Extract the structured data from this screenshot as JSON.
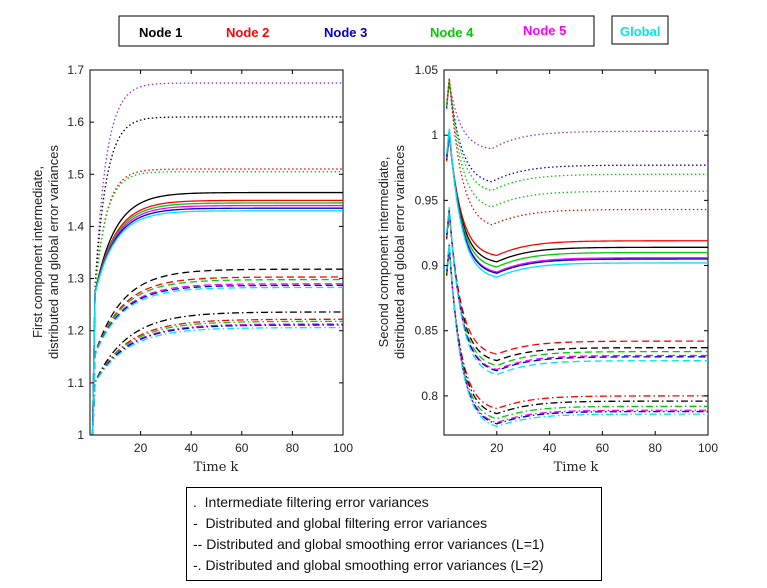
{
  "legend": {
    "nodes": [
      {
        "label": "Node 1",
        "color": "#000000"
      },
      {
        "label": "Node 2",
        "color": "#ff0000"
      },
      {
        "label": "Node 3",
        "color": "#0000cc"
      },
      {
        "label": "Node 4",
        "color": "#00cc00"
      },
      {
        "label": "Node 5",
        "color": "#ff00ff"
      }
    ],
    "global": {
      "label": "Global",
      "color": "#00e5ee"
    }
  },
  "notes": [
    ".  Intermediate filtering error variances",
    "-  Distributed and global filtering error variances",
    "-- Distributed and global smoothing error variances (L=1)",
    "-. Distributed and global smoothing error variances (L=2)"
  ],
  "chart_data": [
    {
      "type": "line",
      "xlabel": "Time k",
      "ylabel_line1": "First component intermediate,",
      "ylabel_line2": "distributed and global error variances",
      "xlim": [
        0,
        100
      ],
      "ylim": [
        1,
        1.7
      ],
      "xticks": [
        20,
        40,
        60,
        80,
        100
      ],
      "yticks": [
        1,
        1.1,
        1.2,
        1.3,
        1.4,
        1.5,
        1.6,
        1.7
      ],
      "ytick_labels": [
        "1",
        "1.1",
        "1.2",
        "1.3",
        "1.4",
        "1.5",
        "1.6",
        "1.7"
      ],
      "xtick_labels": [
        "20",
        "40",
        "60",
        "80",
        "100"
      ],
      "groups": [
        {
          "style": "dotted",
          "start": 1.0,
          "jump": 1.25,
          "rise_k": 4.5,
          "finals": [
            {
              "color": "#9933cc",
              "v": 1.675
            },
            {
              "color": "#000000",
              "v": 1.61
            },
            {
              "color": "#ff0000",
              "v": 1.51
            },
            {
              "color": "#00cc00",
              "v": 1.505
            }
          ]
        },
        {
          "style": "solid",
          "start": 1.0,
          "jump": 1.25,
          "rise_k": 8,
          "finals": [
            {
              "color": "#000000",
              "v": 1.465
            },
            {
              "color": "#ff0000",
              "v": 1.45
            },
            {
              "color": "#00cc00",
              "v": 1.445
            },
            {
              "color": "#ff00ff",
              "v": 1.44
            },
            {
              "color": "#0000cc",
              "v": 1.435
            },
            {
              "color": "#00e5ee",
              "v": 1.43
            }
          ]
        },
        {
          "style": "dashed",
          "start": 1.0,
          "jump": 1.14,
          "rise_k": 11,
          "finals": [
            {
              "color": "#000000",
              "v": 1.318
            },
            {
              "color": "#ff0000",
              "v": 1.303
            },
            {
              "color": "#00cc00",
              "v": 1.298
            },
            {
              "color": "#ff00ff",
              "v": 1.29
            },
            {
              "color": "#0000cc",
              "v": 1.287
            },
            {
              "color": "#00e5ee",
              "v": 1.283
            }
          ]
        },
        {
          "style": "dashdot",
          "start": 1.0,
          "jump": 1.09,
          "rise_k": 13,
          "finals": [
            {
              "color": "#000000",
              "v": 1.236
            },
            {
              "color": "#ff0000",
              "v": 1.222
            },
            {
              "color": "#00cc00",
              "v": 1.218
            },
            {
              "color": "#ff00ff",
              "v": 1.213
            },
            {
              "color": "#0000cc",
              "v": 1.211
            },
            {
              "color": "#00e5ee",
              "v": 1.206
            }
          ]
        }
      ]
    },
    {
      "type": "line",
      "xlabel": "Time k",
      "ylabel_line1": "Second component intermediate,",
      "ylabel_line2": "distributed and global error variances",
      "xlim": [
        0,
        100
      ],
      "ylim": [
        0.77,
        1.05
      ],
      "xticks": [
        20,
        40,
        60,
        80,
        100
      ],
      "yticks": [
        0.8,
        0.85,
        0.9,
        0.95,
        1,
        1.05
      ],
      "ytick_labels": [
        "0.8",
        "0.85",
        "0.9",
        "0.95",
        "1",
        "1.05"
      ],
      "xtick_labels": [
        "20",
        "40",
        "60",
        "80",
        "100"
      ],
      "groups": [
        {
          "style": "dotted",
          "peak": 1.04,
          "dip_k": 18,
          "finals": [
            {
              "color": "#9933cc",
              "v": 1.003,
              "dip": 0.988
            },
            {
              "color": "#0000cc",
              "v": 0.977,
              "dip": 0.962
            },
            {
              "color": "#00cc00",
              "v": 0.97,
              "dip": 0.955
            },
            {
              "color": "#00cc00",
              "v": 0.957,
              "dip": 0.942
            },
            {
              "color": "#ff0000",
              "v": 0.943,
              "dip": 0.928
            }
          ]
        },
        {
          "style": "solid",
          "peak": 1.0,
          "dip_k": 20,
          "finals": [
            {
              "color": "#ff0000",
              "v": 0.919,
              "dip": 0.906
            },
            {
              "color": "#000000",
              "v": 0.914,
              "dip": 0.901
            },
            {
              "color": "#00cc00",
              "v": 0.91,
              "dip": 0.897
            },
            {
              "color": "#ff00ff",
              "v": 0.906,
              "dip": 0.893
            },
            {
              "color": "#0000cc",
              "v": 0.905,
              "dip": 0.892
            },
            {
              "color": "#00e5ee",
              "v": 0.902,
              "dip": 0.889
            }
          ]
        },
        {
          "style": "dashed",
          "peak": 0.94,
          "dip_k": 20,
          "finals": [
            {
              "color": "#ff0000",
              "v": 0.842,
              "dip": 0.83
            },
            {
              "color": "#000000",
              "v": 0.837,
              "dip": 0.825
            },
            {
              "color": "#00cc00",
              "v": 0.834,
              "dip": 0.821
            },
            {
              "color": "#ff00ff",
              "v": 0.831,
              "dip": 0.818
            },
            {
              "color": "#0000cc",
              "v": 0.83,
              "dip": 0.817
            },
            {
              "color": "#00e5ee",
              "v": 0.827,
              "dip": 0.814
            }
          ]
        },
        {
          "style": "dashdot",
          "peak": 0.912,
          "dip_k": 20,
          "finals": [
            {
              "color": "#ff0000",
              "v": 0.8,
              "dip": 0.788
            },
            {
              "color": "#000000",
              "v": 0.796,
              "dip": 0.784
            },
            {
              "color": "#00cc00",
              "v": 0.792,
              "dip": 0.78
            },
            {
              "color": "#ff00ff",
              "v": 0.789,
              "dip": 0.777
            },
            {
              "color": "#0000cc",
              "v": 0.788,
              "dip": 0.776
            },
            {
              "color": "#00e5ee",
              "v": 0.786,
              "dip": 0.774
            }
          ]
        }
      ]
    }
  ]
}
